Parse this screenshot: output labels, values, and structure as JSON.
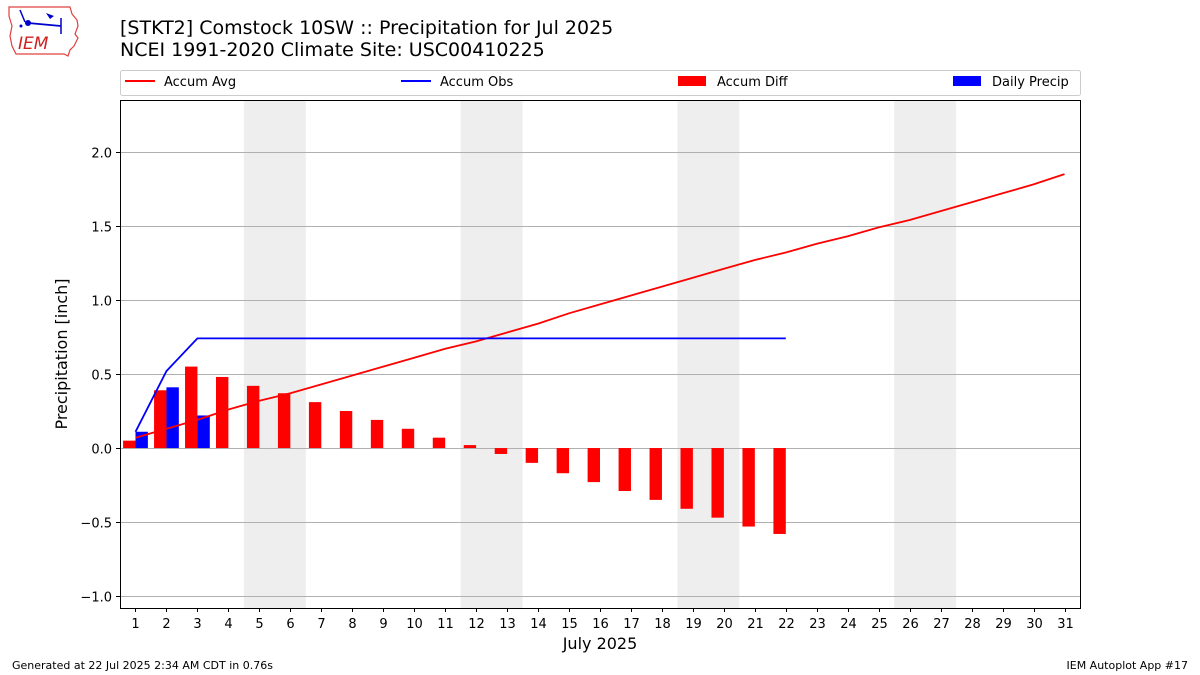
{
  "header": {
    "title_line1": "[STKT2] Comstock 10SW :: Precipitation for Jul 2025",
    "title_line2": "NCEI 1991-2020 Climate Site: USC00410225",
    "logo_text": "IEM"
  },
  "footer": {
    "left": "Generated at 22 Jul 2025 2:34 AM CDT in 0.76s",
    "right": "IEM Autoplot App #17"
  },
  "colors": {
    "accum_avg": "#ff0000",
    "accum_obs": "#0000ff",
    "accum_diff": "#ff0000",
    "daily_precip": "#0000ff",
    "weekend_shade": "#eeeeee",
    "grid": "#b0b0b0"
  },
  "chart_data": {
    "type": "bar",
    "title": "[STKT2] Comstock 10SW :: Precipitation for Jul 2025",
    "subtitle": "NCEI 1991-2020 Climate Site: USC00410225",
    "xlabel": "July 2025",
    "ylabel": "Precipitation [inch]",
    "xlim": [
      0.5,
      31.5
    ],
    "ylim": [
      -1.08,
      2.35
    ],
    "yticks": [
      -1.0,
      -0.5,
      0.0,
      0.5,
      1.0,
      1.5,
      2.0
    ],
    "ytick_labels": [
      "−1.0",
      "−0.5",
      "0.0",
      "0.5",
      "1.0",
      "1.5",
      "2.0"
    ],
    "x": [
      1,
      2,
      3,
      4,
      5,
      6,
      7,
      8,
      9,
      10,
      11,
      12,
      13,
      14,
      15,
      16,
      17,
      18,
      19,
      20,
      21,
      22,
      23,
      24,
      25,
      26,
      27,
      28,
      29,
      30,
      31
    ],
    "grid": "horizontal",
    "legend_position": "top",
    "weekend_shading": [
      [
        4.5,
        6.5
      ],
      [
        11.5,
        13.5
      ],
      [
        18.5,
        20.5
      ],
      [
        25.5,
        27.5
      ]
    ],
    "series": [
      {
        "name": "Accum Avg",
        "kind": "line",
        "x": [
          1,
          2,
          3,
          4,
          5,
          6,
          7,
          8,
          9,
          10,
          11,
          12,
          13,
          14,
          15,
          16,
          17,
          18,
          19,
          20,
          21,
          22,
          23,
          24,
          25,
          26,
          27,
          28,
          29,
          30,
          31
        ],
        "values": [
          0.07,
          0.13,
          0.19,
          0.26,
          0.32,
          0.37,
          0.43,
          0.49,
          0.55,
          0.61,
          0.67,
          0.72,
          0.78,
          0.84,
          0.91,
          0.97,
          1.03,
          1.09,
          1.15,
          1.21,
          1.27,
          1.32,
          1.38,
          1.43,
          1.49,
          1.54,
          1.6,
          1.66,
          1.72,
          1.78,
          1.85
        ]
      },
      {
        "name": "Accum Obs",
        "kind": "line",
        "x": [
          1,
          2,
          3,
          4,
          5,
          6,
          7,
          8,
          9,
          10,
          11,
          12,
          13,
          14,
          15,
          16,
          17,
          18,
          19,
          20,
          21,
          22
        ],
        "values": [
          0.11,
          0.52,
          0.74,
          0.74,
          0.74,
          0.74,
          0.74,
          0.74,
          0.74,
          0.74,
          0.74,
          0.74,
          0.74,
          0.74,
          0.74,
          0.74,
          0.74,
          0.74,
          0.74,
          0.74,
          0.74,
          0.74
        ]
      },
      {
        "name": "Accum Diff",
        "kind": "bar",
        "x": [
          1,
          2,
          3,
          4,
          5,
          6,
          7,
          8,
          9,
          10,
          11,
          12,
          13,
          14,
          15,
          16,
          17,
          18,
          19,
          20,
          21,
          22
        ],
        "values": [
          0.05,
          0.39,
          0.55,
          0.48,
          0.42,
          0.37,
          0.31,
          0.25,
          0.19,
          0.13,
          0.07,
          0.02,
          -0.04,
          -0.1,
          -0.17,
          -0.23,
          -0.29,
          -0.35,
          -0.41,
          -0.47,
          -0.53,
          -0.58
        ]
      },
      {
        "name": "Daily Precip",
        "kind": "bar",
        "x": [
          1,
          2,
          3
        ],
        "values": [
          0.11,
          0.41,
          0.22
        ]
      }
    ]
  }
}
